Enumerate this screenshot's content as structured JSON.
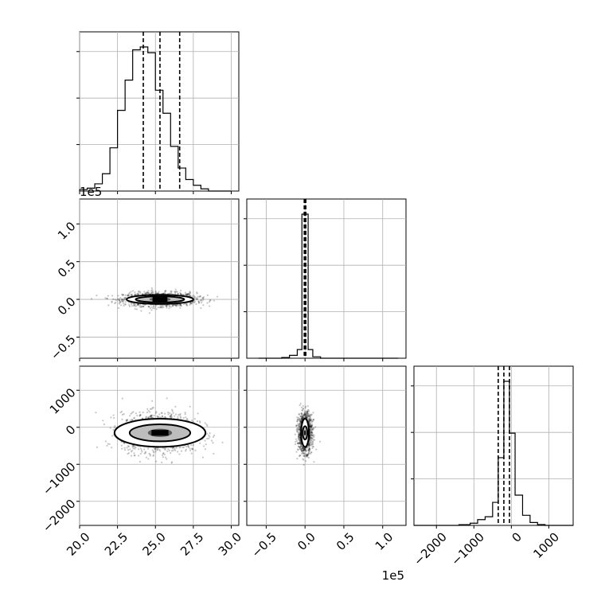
{
  "figure": {
    "offset_label_x": "1e5",
    "offset_label_y": "1e5"
  },
  "chart_data": [
    {
      "type": "bar",
      "panel": "hist-0",
      "bins_x": [
        20.0,
        20.5,
        21.0,
        21.5,
        22.0,
        22.5,
        23.0,
        23.5,
        24.0,
        24.5,
        25.0,
        25.5,
        26.0,
        26.5,
        27.0,
        27.5,
        28.0,
        28.5,
        29.0,
        29.5,
        30.0
      ],
      "counts": [
        0.01,
        0.02,
        0.05,
        0.12,
        0.3,
        0.56,
        0.77,
        0.98,
        1.0,
        0.96,
        0.7,
        0.54,
        0.31,
        0.16,
        0.08,
        0.04,
        0.015,
        0,
        0,
        0
      ],
      "xlim": [
        20.0,
        30.5
      ],
      "quantiles": [
        24.2,
        25.3,
        26.6
      ],
      "x_ticks": [
        20.0,
        22.5,
        25.0,
        27.5,
        30.0
      ],
      "x_tick_labels": [
        "20.0",
        "22.5",
        "25.0",
        "27.5",
        "30.0"
      ]
    },
    {
      "type": "bar",
      "panel": "hist-1",
      "bins_x": [
        -0.6,
        -0.5,
        -0.4,
        -0.3,
        -0.2,
        -0.1,
        -0.04,
        0,
        0.04,
        0.1,
        0.2,
        0.3,
        0.4,
        0.5,
        0.6,
        0.7,
        0.8,
        0.9,
        1.0,
        1.1,
        1.2
      ],
      "counts": [
        0,
        0,
        0,
        0.005,
        0.02,
        0.06,
        1.0,
        1.0,
        0.06,
        0.01,
        0,
        0,
        0,
        0,
        0,
        0,
        0,
        0,
        0,
        0
      ],
      "xlim": [
        -0.75,
        1.3
      ],
      "quantiles": [
        -0.01,
        0.0,
        0.01
      ],
      "x_ticks": [
        -0.5,
        0.0,
        0.5,
        1.0
      ],
      "x_tick_labels": [
        "−0.5",
        "0.0",
        "0.5",
        "1.0"
      ]
    },
    {
      "type": "bar",
      "panel": "hist-2",
      "bins_x": [
        -2600,
        -2300,
        -2000,
        -1700,
        -1400,
        -1100,
        -900,
        -700,
        -500,
        -350,
        -200,
        -50,
        100,
        300,
        500,
        700,
        900,
        1100,
        1300,
        1500,
        1650
      ],
      "counts": [
        0,
        0,
        0,
        0,
        0.005,
        0.015,
        0.04,
        0.06,
        0.16,
        0.47,
        1.0,
        0.64,
        0.21,
        0.07,
        0.02,
        0.006,
        0,
        0,
        0,
        0
      ],
      "xlim": [
        -2600,
        1650
      ],
      "quantiles": [
        -350,
        -200,
        -50
      ],
      "x_ticks": [
        -2000,
        -1000,
        0,
        1000
      ],
      "x_tick_labels": [
        "−2000",
        "−1000",
        "0",
        "1000"
      ]
    },
    {
      "type": "scatter",
      "panel": "p1-vs-p0",
      "xlim": [
        20.0,
        30.5
      ],
      "ylim": [
        -0.78,
        1.33
      ],
      "center": [
        25.3,
        0.0
      ],
      "spread": [
        1.2,
        0.045
      ],
      "y_ticks": [
        -0.5,
        0.0,
        0.5,
        1.0
      ],
      "y_tick_labels": [
        "−0.5",
        "0.0",
        "0.5",
        "1.0"
      ],
      "contours": [
        {
          "rx": 2.2,
          "ry": 0.06
        },
        {
          "rx": 1.6,
          "ry": 0.04
        },
        {
          "rx": 0.7,
          "ry": 0.025
        }
      ]
    },
    {
      "type": "scatter",
      "panel": "p2-vs-p0",
      "xlim": [
        20.0,
        30.5
      ],
      "ylim": [
        -2650,
        1650
      ],
      "center": [
        25.3,
        -150
      ],
      "spread": [
        1.25,
        260
      ],
      "y_ticks": [
        -2000,
        -1000,
        0,
        1000
      ],
      "y_tick_labels": [
        "−2000",
        "−1000",
        "0",
        "1000"
      ],
      "contours": [
        {
          "rx": 3.0,
          "ry": 380
        },
        {
          "rx": 2.0,
          "ry": 230
        },
        {
          "rx": 0.8,
          "ry": 110
        }
      ]
    },
    {
      "type": "scatter",
      "panel": "p2-vs-p1",
      "xlim": [
        -0.75,
        1.3
      ],
      "ylim": [
        -2650,
        1650
      ],
      "center": [
        0.0,
        -150
      ],
      "spread": [
        0.045,
        260
      ],
      "contours": [
        {
          "rx": 0.05,
          "ry": 380
        },
        {
          "rx": 0.03,
          "ry": 180
        },
        {
          "rx": 0.013,
          "ry": 60
        }
      ]
    }
  ]
}
